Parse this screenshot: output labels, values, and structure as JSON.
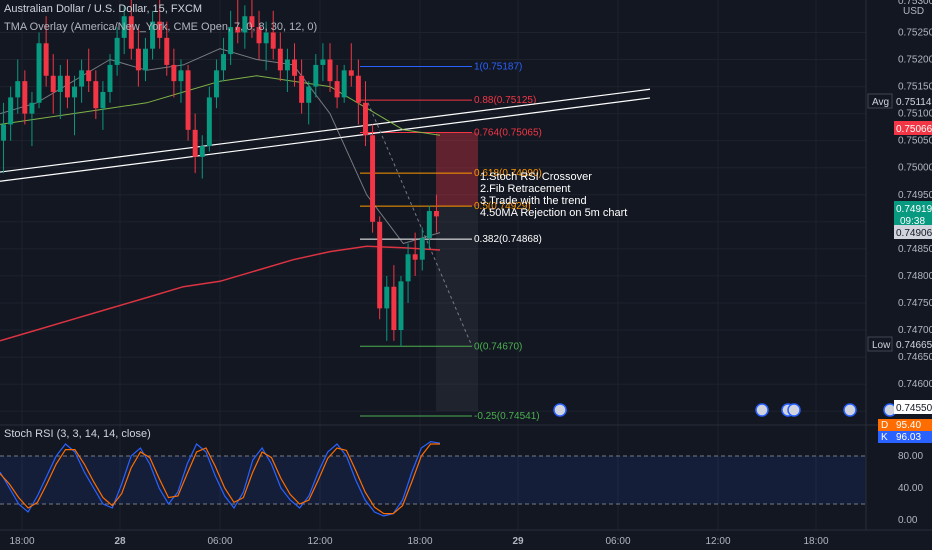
{
  "header": {
    "symbol": "Australian Dollar / U.S. Dollar, 15, FXCM",
    "indicator": "TMA Overlay (America/New_York, CME Open, 7, 0, 8, 30, 12, 0)"
  },
  "price_axis": {
    "currency": "USD",
    "top_partial": "0.75300",
    "ticks": [
      "0.75250",
      "0.75200",
      "0.75150",
      "0.75100",
      "0.75050",
      "0.75000",
      "0.74950",
      "0.74900",
      "0.74850",
      "0.74800",
      "0.74750",
      "0.74700",
      "0.74650",
      "0.74600",
      "0.74550"
    ]
  },
  "price_tags": [
    {
      "label": "Avg",
      "value": "0.75114",
      "bg": "#131722",
      "fg": "#d1d4dc",
      "style": "label"
    },
    {
      "value": "0.75066",
      "bg": "#f23645",
      "fg": "#ffffff",
      "style": "box"
    },
    {
      "value": "0.74919",
      "sub": "09:38",
      "bg": "#089981",
      "fg": "#ffffff",
      "style": "box"
    },
    {
      "value": "0.74906",
      "bg": "#d1d4dc",
      "fg": "#131722",
      "style": "box"
    },
    {
      "label": "Low",
      "value": "0.74665",
      "bg": "#131722",
      "fg": "#d1d4dc",
      "style": "label"
    },
    {
      "value": "0.74550",
      "bg": "#ffffff",
      "fg": "#131722",
      "style": "box"
    }
  ],
  "time_axis": [
    "18:00",
    "28",
    "06:00",
    "12:00",
    "18:00",
    "29",
    "06:00",
    "12:00",
    "18:00"
  ],
  "fib_levels": [
    {
      "label": "1(0.75187)",
      "price": 0.75187,
      "color": "#2962ff"
    },
    {
      "label": "0.88(0.75125)",
      "price": 0.75125,
      "color": "#f23645"
    },
    {
      "label": "0.764(0.75065)",
      "price": 0.75065,
      "color": "#f23645"
    },
    {
      "label": "0.618(0.74990)",
      "price": 0.7499,
      "color": "#ff9800"
    },
    {
      "label": "0.5(0.74929)",
      "price": 0.74929,
      "color": "#ff9800"
    },
    {
      "label": "0.382(0.74868)",
      "price": 0.74868,
      "color": "#ffffff"
    },
    {
      "label": "0(0.74670)",
      "price": 0.7467,
      "color": "#4caf50"
    },
    {
      "label": "-0.25(0.74541)",
      "price": 0.74541,
      "color": "#4caf50"
    }
  ],
  "annotation": [
    "1.Stoch RSI Crossover",
    "2.Fib Retracement",
    "3.Trade with the trend",
    "4.50MA Rejection on 5m chart"
  ],
  "rsi": {
    "title": "Stoch RSI (3, 3, 14, 14, close)",
    "axis": [
      "80.00",
      "40.00",
      "0.00"
    ],
    "d_label": "D",
    "d_value": "95.40",
    "k_label": "K",
    "k_value": "96.03",
    "upper_band": 80,
    "lower_band": 20
  },
  "chart_data": [
    {
      "type": "candlestick",
      "title": "Australian Dollar / U.S. Dollar, 15, FXCM",
      "ylim": [
        0.7453,
        0.7531
      ],
      "x_ticks": [
        "18:00",
        "28",
        "06:00",
        "12:00",
        "18:00",
        "29",
        "06:00",
        "12:00",
        "18:00"
      ],
      "candles": [
        [
          0.7505,
          0.7512,
          0.7499,
          0.7508
        ],
        [
          0.7508,
          0.7515,
          0.7505,
          0.7513
        ],
        [
          0.7513,
          0.752,
          0.751,
          0.7516
        ],
        [
          0.7516,
          0.7518,
          0.7508,
          0.751
        ],
        [
          0.751,
          0.7514,
          0.7504,
          0.7512
        ],
        [
          0.7512,
          0.7525,
          0.7511,
          0.7523
        ],
        [
          0.7523,
          0.7528,
          0.7515,
          0.7517
        ],
        [
          0.7517,
          0.7521,
          0.751,
          0.7514
        ],
        [
          0.7514,
          0.7519,
          0.7509,
          0.7517
        ],
        [
          0.7517,
          0.752,
          0.7511,
          0.7513
        ],
        [
          0.7513,
          0.7517,
          0.7506,
          0.7515
        ],
        [
          0.7515,
          0.752,
          0.7512,
          0.7518
        ],
        [
          0.7518,
          0.7522,
          0.7514,
          0.7516
        ],
        [
          0.7516,
          0.7518,
          0.7509,
          0.7511
        ],
        [
          0.7511,
          0.7516,
          0.7507,
          0.7514
        ],
        [
          0.7514,
          0.7521,
          0.7512,
          0.7519
        ],
        [
          0.7519,
          0.7526,
          0.7517,
          0.7524
        ],
        [
          0.7524,
          0.753,
          0.7521,
          0.7528
        ],
        [
          0.7528,
          0.7531,
          0.752,
          0.7522
        ],
        [
          0.7522,
          0.7526,
          0.7515,
          0.7518
        ],
        [
          0.7518,
          0.7524,
          0.7516,
          0.7522
        ],
        [
          0.7522,
          0.7529,
          0.752,
          0.7527
        ],
        [
          0.7527,
          0.7531,
          0.7522,
          0.7524
        ],
        [
          0.7524,
          0.7527,
          0.7517,
          0.7519
        ],
        [
          0.7519,
          0.7522,
          0.7513,
          0.7516
        ],
        [
          0.7516,
          0.752,
          0.7512,
          0.7518
        ],
        [
          0.7518,
          0.7519,
          0.7505,
          0.7507
        ],
        [
          0.7507,
          0.751,
          0.7499,
          0.7502
        ],
        [
          0.7502,
          0.7506,
          0.7498,
          0.7504
        ],
        [
          0.7504,
          0.7515,
          0.7503,
          0.7513
        ],
        [
          0.7513,
          0.752,
          0.7511,
          0.7518
        ],
        [
          0.7518,
          0.7524,
          0.7516,
          0.7521
        ],
        [
          0.7521,
          0.7529,
          0.7519,
          0.7526
        ],
        [
          0.7526,
          0.7531,
          0.7523,
          0.7525
        ],
        [
          0.7525,
          0.753,
          0.7522,
          0.7528
        ],
        [
          0.7528,
          0.7531,
          0.7524,
          0.7526
        ],
        [
          0.7526,
          0.7529,
          0.752,
          0.7523
        ],
        [
          0.7523,
          0.7527,
          0.7518,
          0.7525
        ],
        [
          0.7525,
          0.7529,
          0.752,
          0.7522
        ],
        [
          0.7522,
          0.7525,
          0.7516,
          0.7518
        ],
        [
          0.7518,
          0.7522,
          0.7514,
          0.752
        ],
        [
          0.752,
          0.7523,
          0.7515,
          0.7517
        ],
        [
          0.7517,
          0.752,
          0.751,
          0.7512
        ],
        [
          0.7512,
          0.7516,
          0.7508,
          0.7515
        ],
        [
          0.7515,
          0.7521,
          0.7513,
          0.7519
        ],
        [
          0.7519,
          0.7523,
          0.7516,
          0.752
        ],
        [
          0.752,
          0.7523,
          0.7514,
          0.7516
        ],
        [
          0.7516,
          0.7519,
          0.7511,
          0.7513
        ],
        [
          0.7513,
          0.7519,
          0.7512,
          0.7518
        ],
        [
          0.7518,
          0.7523,
          0.7515,
          0.7517
        ],
        [
          0.7517,
          0.752,
          0.7508,
          0.7512
        ],
        [
          0.7512,
          0.7516,
          0.7504,
          0.7506
        ],
        [
          0.7506,
          0.7508,
          0.7488,
          0.749
        ],
        [
          0.749,
          0.7491,
          0.7472,
          0.7474
        ],
        [
          0.7474,
          0.748,
          0.7468,
          0.7478
        ],
        [
          0.7478,
          0.7482,
          0.7468,
          0.747
        ],
        [
          0.747,
          0.748,
          0.7467,
          0.7479
        ],
        [
          0.7479,
          0.7486,
          0.7475,
          0.7484
        ],
        [
          0.7484,
          0.7488,
          0.748,
          0.7483
        ],
        [
          0.7483,
          0.7489,
          0.7481,
          0.7487
        ],
        [
          0.7487,
          0.7493,
          0.7485,
          0.7492
        ],
        [
          0.7492,
          0.7495,
          0.7488,
          0.7491
        ]
      ],
      "lines": [
        {
          "name": "",
          "color": "#f23645",
          "y": [
            0.7468,
            0.747,
            0.7472,
            0.7474,
            0.7476,
            0.7478,
            0.7479,
            0.7481,
            0.7483,
            0.74845,
            0.74855,
            0.74852,
            0.74848
          ]
        },
        {
          "name": "",
          "color": "#8bc34a",
          "y": [
            0.7508,
            0.7509,
            0.751,
            0.7511,
            0.7512,
            0.7514,
            0.7516,
            0.7517,
            0.7516,
            0.7515,
            0.7511,
            0.7507,
            0.7506
          ]
        },
        {
          "name": "",
          "color": "#bdbdbd",
          "y": [
            0.751,
            0.7512,
            0.7516,
            0.752,
            0.7518,
            0.7519,
            0.7522,
            0.752,
            0.7519,
            0.751,
            0.7495,
            0.7486,
            0.7488
          ]
        }
      ]
    },
    {
      "type": "line",
      "title": "Stoch RSI (3, 3, 14, 14, close)",
      "ylim": [
        0,
        100
      ],
      "series": [
        {
          "name": "K",
          "color": "#2962ff",
          "values": [
            60,
            40,
            20,
            10,
            30,
            55,
            80,
            95,
            85,
            60,
            40,
            20,
            15,
            45,
            80,
            90,
            70,
            40,
            20,
            35,
            70,
            95,
            85,
            55,
            30,
            15,
            35,
            75,
            90,
            70,
            40,
            25,
            15,
            30,
            60,
            85,
            95,
            80,
            50,
            25,
            10,
            5,
            8,
            25,
            60,
            90,
            98,
            96
          ]
        },
        {
          "name": "D",
          "color": "#ff6d00",
          "values": [
            58,
            45,
            28,
            15,
            22,
            45,
            70,
            88,
            88,
            70,
            48,
            28,
            18,
            33,
            65,
            85,
            78,
            52,
            28,
            30,
            58,
            85,
            90,
            67,
            40,
            22,
            28,
            60,
            85,
            78,
            52,
            32,
            20,
            25,
            50,
            77,
            90,
            87,
            62,
            35,
            16,
            8,
            8,
            18,
            48,
            80,
            95,
            95
          ]
        }
      ]
    }
  ]
}
